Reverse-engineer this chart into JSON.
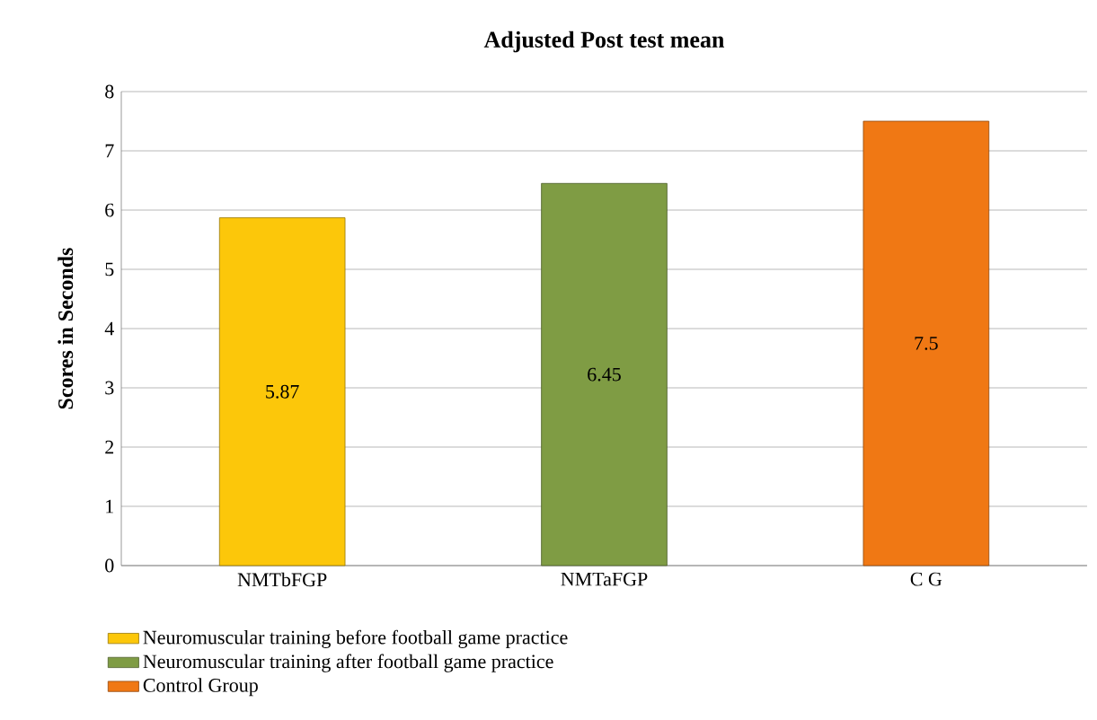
{
  "chart_data": {
    "type": "bar",
    "title": "Adjusted Post test mean",
    "ylabel": "Scores in Seconds",
    "categories": [
      "NMTbFGP",
      "NMTaFGP",
      "C G"
    ],
    "series": [
      {
        "name": "Neuromuscular training before football game practice",
        "color": "#fcc70a",
        "values": [
          5.87,
          null,
          null
        ]
      },
      {
        "name": "Neuromuscular training after football game practice",
        "color": "#7f9c44",
        "values": [
          null,
          6.45,
          null
        ]
      },
      {
        "name": "Control Group",
        "color": "#f07814",
        "values": [
          null,
          null,
          7.5
        ]
      }
    ],
    "ylim": [
      0,
      8
    ],
    "yticks": [
      0,
      1,
      2,
      3,
      4,
      5,
      6,
      7,
      8
    ],
    "grid": "y",
    "data_labels": true,
    "legend": "bottom left"
  }
}
